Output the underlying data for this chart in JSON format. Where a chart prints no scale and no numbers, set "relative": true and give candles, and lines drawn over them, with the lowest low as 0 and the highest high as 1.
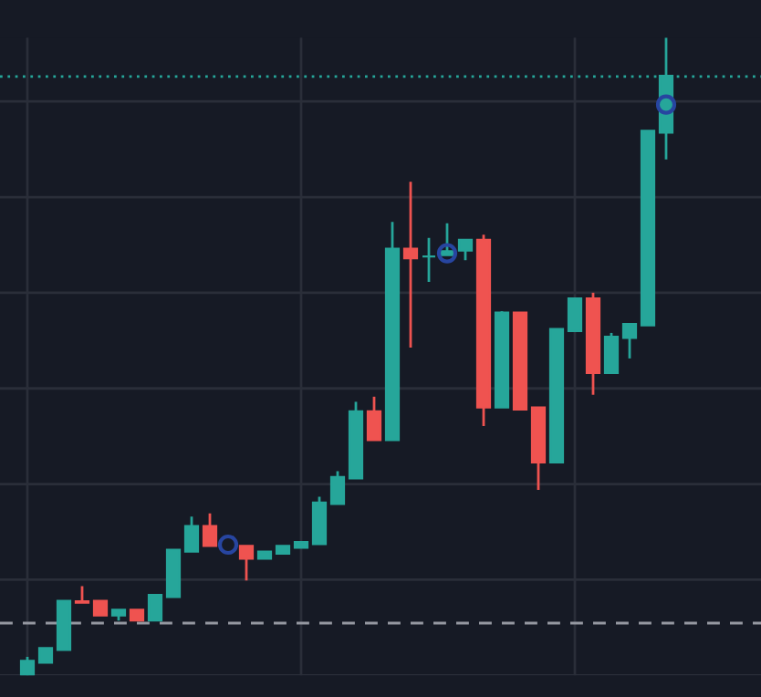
{
  "chart_data": {
    "type": "candlestick",
    "relative": true,
    "categories": [
      null,
      null,
      null,
      null,
      null,
      null,
      null,
      null,
      null,
      null,
      null,
      null,
      null,
      null,
      null,
      null,
      null,
      null,
      null,
      null,
      null,
      null,
      null,
      null,
      null,
      null,
      null,
      null,
      null,
      null,
      null,
      null,
      null,
      null,
      null,
      null
    ],
    "ohlc": [
      [
        0,
        0.029,
        0,
        0.023
      ],
      [
        0.02,
        0.043,
        0.02,
        0.043
      ],
      [
        0.04,
        0.117,
        0.04,
        0.117
      ],
      [
        0.116,
        0.14,
        0.114,
        0.114
      ],
      [
        0.117,
        0.117,
        0.094,
        0.094
      ],
      [
        0.094,
        0.103,
        0.086,
        0.103
      ],
      [
        0.103,
        0.103,
        0.086,
        0.086
      ],
      [
        0.086,
        0.126,
        0.086,
        0.126
      ],
      [
        0.123,
        0.197,
        0.123,
        0.197
      ],
      [
        0.194,
        0.249,
        0.194,
        0.234
      ],
      [
        0.234,
        0.254,
        0.203,
        0.203
      ],
      null,
      [
        0.203,
        0.203,
        0.149,
        0.183
      ],
      [
        0.183,
        0.194,
        0.183,
        0.194
      ],
      [
        0.191,
        0.203,
        0.191,
        0.203
      ],
      [
        0.2,
        0.209,
        0.2,
        0.209
      ],
      [
        0.206,
        0.28,
        0.206,
        0.271
      ],
      [
        0.269,
        0.32,
        0.269,
        0.311
      ],
      [
        0.309,
        0.429,
        0.309,
        0.414
      ],
      [
        0.414,
        0.437,
        0.369,
        0.369
      ],
      [
        0.369,
        0.711,
        0.369,
        0.669
      ],
      [
        0.669,
        0.774,
        0.514,
        0.654
      ],
      [
        0.657,
        0.686,
        0.617,
        0.657
      ],
      [
        0.659,
        0.709,
        0.659,
        0.665
      ],
      [
        0.666,
        0.683,
        0.651,
        0.683
      ],
      [
        0.683,
        0.691,
        0.391,
        0.42
      ],
      [
        0.42,
        0.571,
        0.42,
        0.569
      ],
      [
        0.569,
        0.569,
        0.417,
        0.417
      ],
      [
        0.42,
        0.42,
        0.291,
        0.334
      ],
      [
        0.334,
        0.543,
        0.334,
        0.543
      ],
      [
        0.54,
        0.591,
        0.54,
        0.591
      ],
      [
        0.591,
        0.6,
        0.44,
        0.474
      ],
      [
        0.474,
        0.537,
        0.474,
        0.531
      ],
      [
        0.529,
        0.551,
        0.497,
        0.551
      ],
      [
        0.549,
        0.854,
        0.549,
        0.854
      ],
      [
        0.851,
        1,
        0.809,
        0.94
      ]
    ],
    "colors": [
      "#26a69a",
      "#26a69a",
      "#26a69a",
      "#ef5350",
      "#ef5350",
      "#26a69a",
      "#ef5350",
      "#26a69a",
      "#26a69a",
      "#26a69a",
      "#ef5350",
      null,
      "#ef5350",
      "#26a69a",
      "#26a69a",
      "#26a69a",
      "#26a69a",
      "#26a69a",
      "#26a69a",
      "#ef5350",
      "#26a69a",
      "#ef5350",
      "#26a69a",
      "#26a69a",
      "#26a69a",
      "#ef5350",
      "#26a69a",
      "#ef5350",
      "#ef5350",
      "#26a69a",
      "#26a69a",
      "#ef5350",
      "#26a69a",
      "#26a69a",
      "#26a69a",
      "#26a69a"
    ],
    "series": [
      {
        "type": "scatter",
        "marker": "circle",
        "color": "#2745a0",
        "values": [
          null,
          null,
          null,
          null,
          null,
          null,
          null,
          null,
          null,
          null,
          null,
          0.205,
          null,
          null,
          null,
          null,
          null,
          null,
          null,
          null,
          null,
          null,
          null,
          0.662,
          null,
          null,
          null,
          null,
          null,
          null,
          null,
          null,
          null,
          null,
          null,
          0.895
        ]
      }
    ],
    "ref_lines": [
      {
        "axis": "y",
        "value": 0.939,
        "color": "#26a69a",
        "line_style": "dotted"
      },
      {
        "axis": "y",
        "value": 0.082,
        "color": "#9598a1",
        "line_style": "dashed"
      }
    ],
    "grid": true
  }
}
